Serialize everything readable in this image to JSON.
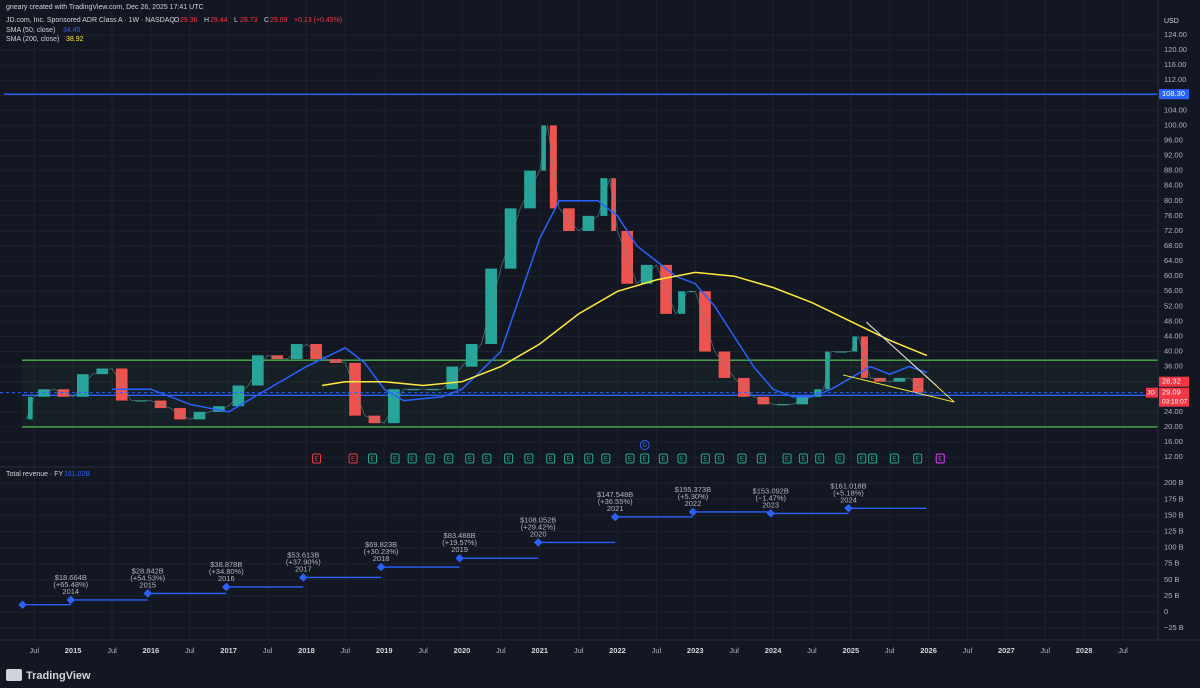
{
  "header": {
    "credit": "gneary created with TradingView.com, Dec 26, 2025 17:41 UTC",
    "symbol": "JD.com, Inc. Sponsored ADR Class A · 1W · NASDAQ",
    "ohlc_labels": [
      "O",
      "H",
      "L",
      "C"
    ],
    "ohlc_values": [
      29.36,
      29.44,
      28.73,
      29.09
    ],
    "change": "+0.13 (+0.45%)"
  },
  "chart_data": [
    {
      "type": "candle-line",
      "currency": "USD",
      "xlim": [
        2014.06,
        2028.95
      ],
      "ylim": [
        9.9,
        129.3
      ],
      "yticks": [
        {
          "value": 124,
          "label": "124.00"
        },
        {
          "value": 120,
          "label": "120.00"
        },
        {
          "value": 116,
          "label": "116.00"
        },
        {
          "value": 112,
          "label": "112.00"
        },
        {
          "value": 108,
          "label": "108.00"
        },
        {
          "value": 104,
          "label": "104.00"
        },
        {
          "value": 100,
          "label": "100.00"
        },
        {
          "value": 96,
          "label": "96.00"
        },
        {
          "value": 92,
          "label": "92.00"
        },
        {
          "value": 88,
          "label": "88.00"
        },
        {
          "value": 84,
          "label": "84.00"
        },
        {
          "value": 80,
          "label": "80.00"
        },
        {
          "value": 76,
          "label": "76.00"
        },
        {
          "value": 72,
          "label": "72.00"
        },
        {
          "value": 68,
          "label": "68.00"
        },
        {
          "value": 64,
          "label": "64.00"
        },
        {
          "value": 60,
          "label": "60.00"
        },
        {
          "value": 56,
          "label": "56.00"
        },
        {
          "value": 52,
          "label": "52.00"
        },
        {
          "value": 48,
          "label": "48.00"
        },
        {
          "value": 44,
          "label": "44.00"
        },
        {
          "value": 40,
          "label": "40.00"
        },
        {
          "value": 36,
          "label": "36.00"
        },
        {
          "value": 32,
          "label": "32.00"
        },
        {
          "value": 24,
          "label": "24.00"
        },
        {
          "value": 20,
          "label": "20.00"
        },
        {
          "value": 16,
          "label": "16.00"
        },
        {
          "value": 12,
          "label": "12.00"
        }
      ],
      "series": [
        {
          "name": "JD",
          "color_up": "#26a69a",
          "color_down": "#ef5350",
          "x": [
            2014.4,
            2014.5,
            2014.75,
            2015.0,
            2015.25,
            2015.5,
            2015.75,
            2016.0,
            2016.25,
            2016.5,
            2016.75,
            2017.0,
            2017.25,
            2017.5,
            2017.75,
            2018.0,
            2018.25,
            2018.5,
            2018.75,
            2019.0,
            2019.25,
            2019.5,
            2019.75,
            2020.0,
            2020.25,
            2020.5,
            2020.75,
            2021.0,
            2021.1,
            2021.25,
            2021.5,
            2021.75,
            2021.9,
            2022.0,
            2022.25,
            2022.5,
            2022.75,
            2022.9,
            2023.0,
            2023.25,
            2023.5,
            2023.75,
            2024.0,
            2024.25,
            2024.5,
            2024.65,
            2024.75,
            2025.0,
            2025.1,
            2025.25,
            2025.5,
            2025.75,
            2025.98
          ],
          "values": [
            22,
            28,
            30,
            28,
            34,
            35.5,
            27,
            27,
            25,
            22,
            24,
            25.5,
            31,
            39,
            38,
            42,
            38,
            37,
            23,
            21,
            30,
            30,
            30,
            36,
            42,
            62,
            78,
            88,
            100,
            78,
            72,
            76,
            86,
            72,
            58,
            63,
            50,
            56,
            56,
            40,
            33,
            28,
            26,
            26,
            28,
            30,
            40,
            40,
            44,
            33,
            32,
            33,
            29.09
          ]
        },
        {
          "name": "SMA (50, close)",
          "color": "#2962ff",
          "last_value": 34.45,
          "x": [
            2015.5,
            2016.0,
            2016.5,
            2017.0,
            2017.5,
            2018.0,
            2018.5,
            2018.75,
            2019.0,
            2019.25,
            2019.75,
            2020.0,
            2020.5,
            2020.75,
            2021.0,
            2021.25,
            2021.5,
            2021.75,
            2022.0,
            2022.25,
            2022.5,
            2022.75,
            2023.0,
            2023.25,
            2023.5,
            2023.75,
            2024.0,
            2024.25,
            2024.5,
            2024.75,
            2025.0,
            2025.25,
            2025.5,
            2025.75,
            2025.98
          ],
          "values": [
            30,
            30,
            26,
            24,
            30,
            36,
            41,
            37,
            30,
            27,
            28,
            30,
            40,
            55,
            70,
            80,
            80,
            80,
            76,
            68,
            64,
            60,
            58,
            52,
            44,
            36,
            30,
            28,
            28,
            30,
            33,
            36,
            34,
            36,
            34.45
          ]
        },
        {
          "name": "SMA (200, close)",
          "color": "#ffeb3b",
          "last_value": 38.92,
          "x": [
            2018.2,
            2018.5,
            2019.0,
            2019.5,
            2020.0,
            2020.5,
            2021.0,
            2021.5,
            2022.0,
            2022.5,
            2023.0,
            2023.5,
            2024.0,
            2024.5,
            2025.0,
            2025.5,
            2025.98
          ],
          "values": [
            31,
            32,
            32,
            31,
            32,
            36,
            42,
            50,
            56,
            59,
            61,
            60,
            57,
            53,
            48,
            43,
            38.92
          ]
        }
      ],
      "levels": [
        {
          "value": 108.3,
          "label": "108.30",
          "color": "#2962ff"
        },
        {
          "value": 37.7,
          "color": "#4caf50"
        },
        {
          "value": 20,
          "color": "#4caf50"
        },
        {
          "value": 28.39,
          "label": "28.39",
          "color": "#2962ff"
        }
      ],
      "price_labels": [
        {
          "value": 28.32,
          "label": "28.32",
          "color": "#f23645"
        },
        {
          "value": 29.09,
          "label": "29.09",
          "color": "#f23645"
        }
      ],
      "countdown": "03:18:07",
      "trendlines": [
        {
          "color": "#ffeb3b",
          "x": [
            2025.2,
            2026.33
          ],
          "y": [
            47.8,
            26.6
          ]
        },
        {
          "color": "#ffeb3b",
          "x": [
            2024.9,
            2026.33
          ],
          "y": [
            33.8,
            26.6
          ]
        },
        {
          "color": "#d1d4dc",
          "x": [
            2025.2,
            2026.1
          ],
          "y": [
            47.8,
            31
          ]
        }
      ],
      "earnings_label": "E",
      "earnings": [
        {
          "color": "#f23645",
          "x": [
            2018.13,
            2018.6
          ]
        },
        {
          "color": "#22ab94",
          "x": [
            2018.85,
            2019.14,
            2019.36,
            2019.59,
            2019.83,
            2020.1,
            2020.32,
            2020.6,
            2020.86,
            2021.14,
            2021.37,
            2021.63,
            2021.85,
            2022.16,
            2022.35,
            2022.59,
            2022.83,
            2023.13,
            2023.31,
            2023.6,
            2023.85,
            2024.18,
            2024.39,
            2024.6,
            2024.86,
            2025.14,
            2025.28,
            2025.56,
            2025.86
          ]
        },
        {
          "color": "#e040fb",
          "x": [
            2026.15
          ]
        }
      ],
      "dividend": {
        "label": "D",
        "x": 2022.35
      }
    },
    {
      "type": "step",
      "title": "Total revenue · FY",
      "last_value": 161.02,
      "last_value_label": "161.02B",
      "color": "#2962ff",
      "xlim": [
        2014.06,
        2028.95
      ],
      "ylim": [
        -40.4,
        220.5
      ],
      "yticks": [
        {
          "value": 200,
          "label": "200 B"
        },
        {
          "value": 175,
          "label": "175 B"
        },
        {
          "value": 150,
          "label": "150 B"
        },
        {
          "value": 125,
          "label": "125 B"
        },
        {
          "value": 100,
          "label": "100 B"
        },
        {
          "value": 75,
          "label": "75 B"
        },
        {
          "value": 50,
          "label": "50 B"
        },
        {
          "value": 25,
          "label": "25 B"
        },
        0,
        {
          "value": -25,
          "label": "−25 B"
        }
      ],
      "x": [
        2014.35,
        2014.97,
        2015.96,
        2016.97,
        2017.96,
        2018.96,
        2019.97,
        2020.98,
        2021.97,
        2022.97,
        2023.97,
        2024.97
      ],
      "values": [
        11.3,
        18.664,
        28.842,
        38.878,
        53.613,
        69.823,
        83.488,
        108.052,
        147.548,
        155.373,
        153.092,
        161.018
      ],
      "value_labels": [
        null,
        "$18.664B",
        "$28.842B",
        "$38.878B",
        "$53.613B",
        "$69.823B",
        "$83.488B",
        "$108.052B",
        "$147.548B",
        "$155.373B",
        "$153.092B",
        "$161.018B"
      ],
      "change_labels": [
        null,
        "(+65.48%)",
        "(+54.53%)",
        "(+34.80%)",
        "(+37.90%)",
        "(+30.23%)",
        "(+19.57%)",
        "(+29.42%)",
        "(+36.55%)",
        "(+5.30%)",
        "(−1.47%)",
        "(+5.18%)"
      ],
      "period_labels": [
        null,
        "2014",
        "2015",
        "2016",
        "2017",
        "2018",
        "2019",
        "2020",
        "2021",
        "2022",
        "2023",
        "2024"
      ],
      "xticks": [
        {
          "value": 2014.5,
          "label": "Jul"
        },
        2015,
        {
          "value": 2015.5,
          "label": "Jul"
        },
        2016,
        {
          "value": 2016.5,
          "label": "Jul"
        },
        2017,
        {
          "value": 2017.5,
          "label": "Jul"
        },
        2018,
        {
          "value": 2018.5,
          "label": "Jul"
        },
        2019,
        {
          "value": 2019.5,
          "label": "Jul"
        },
        2020,
        {
          "value": 2020.5,
          "label": "Jul"
        },
        2021,
        {
          "value": 2021.5,
          "label": "Jul"
        },
        2022,
        {
          "value": 2022.5,
          "label": "Jul"
        },
        2023,
        {
          "value": 2023.5,
          "label": "Jul"
        },
        2024,
        {
          "value": 2024.5,
          "label": "Jul"
        },
        2025,
        {
          "value": 2025.5,
          "label": "Jul"
        },
        2026,
        {
          "value": 2026.5,
          "label": "Jul"
        },
        2027,
        {
          "value": 2027.5,
          "label": "Jul"
        },
        2028,
        {
          "value": 2028.5,
          "label": "Jul"
        }
      ]
    }
  ],
  "footer": {
    "brand": "TradingView"
  }
}
